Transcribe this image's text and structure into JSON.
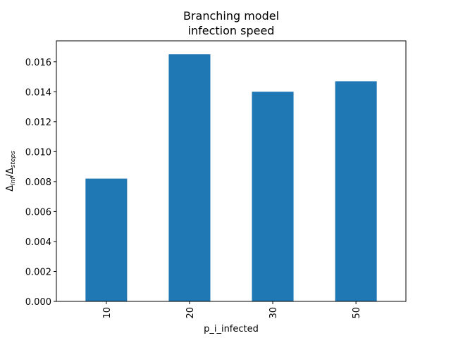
{
  "chart_data": {
    "type": "bar",
    "title_line1": "Branching model",
    "title_line2": "infection speed",
    "xlabel": "p_i_infected",
    "ylabel": "Δinf/Δsteps",
    "ylabel_main": "Δ",
    "ylabel_sub1": "inf",
    "ylabel_sep": "/Δ",
    "ylabel_sub2": "steps",
    "categories": [
      "10",
      "20",
      "30",
      "50"
    ],
    "values": [
      0.0082,
      0.0165,
      0.014,
      0.0147
    ],
    "ylim": [
      0,
      0.0174
    ],
    "yticks": [
      0.0,
      0.002,
      0.004,
      0.006,
      0.008,
      0.01,
      0.012,
      0.014,
      0.016
    ],
    "ytick_labels": [
      "0.000",
      "0.002",
      "0.004",
      "0.006",
      "0.008",
      "0.010",
      "0.012",
      "0.014",
      "0.016"
    ],
    "bar_color": "#1f77b4",
    "grid": false,
    "legend": "none"
  }
}
